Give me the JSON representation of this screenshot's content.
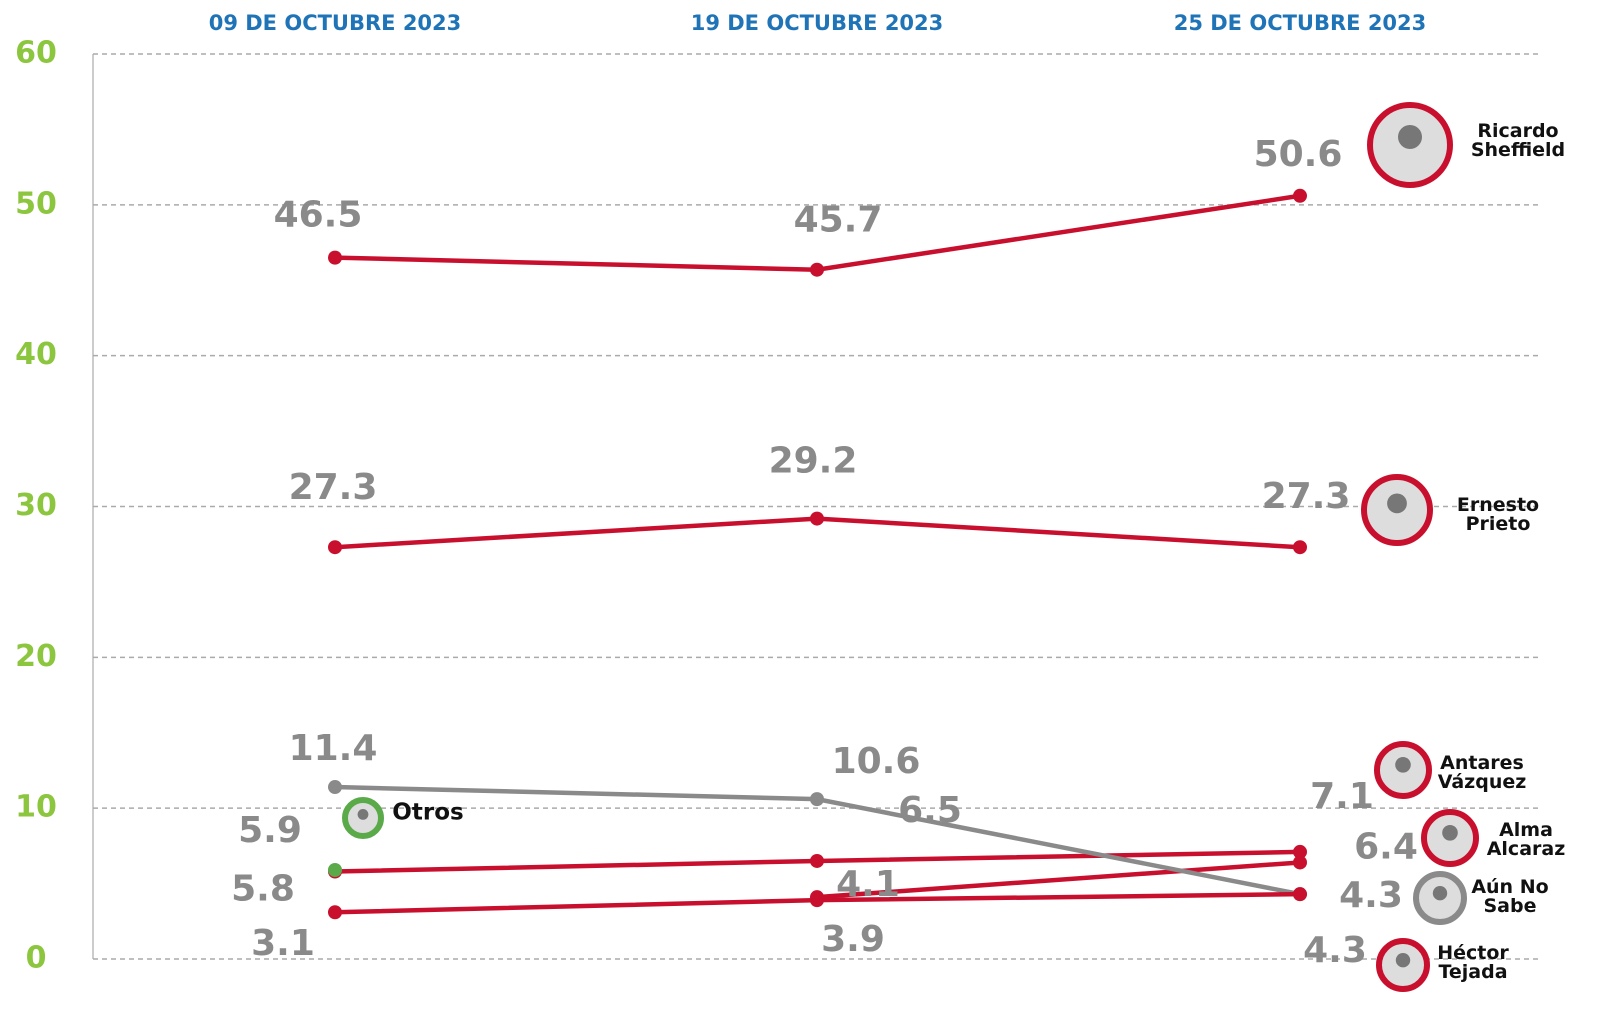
{
  "chart_data": {
    "type": "line",
    "categories": [
      "09 DE OCTUBRE 2023",
      "19 DE OCTUBRE 2023",
      "25 DE OCTUBRE 2023"
    ],
    "ylim": [
      0,
      60
    ],
    "yticks": [
      0,
      10,
      20,
      30,
      40,
      50,
      60
    ],
    "grid": true,
    "series": [
      {
        "name": "Ricardo Sheffield",
        "color": "#c8102e",
        "values": [
          46.5,
          45.7,
          50.6
        ]
      },
      {
        "name": "Ernesto Prieto",
        "color": "#c8102e",
        "values": [
          27.3,
          29.2,
          27.3
        ]
      },
      {
        "name": "Antares Vázquez",
        "color": "#c8102e",
        "values": [
          5.8,
          6.5,
          7.1
        ]
      },
      {
        "name": "Alma Alcaraz",
        "color": "#c8102e",
        "values": [
          null,
          4.1,
          6.4
        ]
      },
      {
        "name": "Aún No Sabe",
        "color": "#8a8a8a",
        "values": [
          11.4,
          10.6,
          4.3
        ]
      },
      {
        "name": "Héctor Tejada",
        "color": "#c8102e",
        "values": [
          3.1,
          3.9,
          4.3
        ]
      },
      {
        "name": "Otros",
        "color": "#5aaa4a",
        "values": [
          5.9,
          null,
          null
        ]
      }
    ]
  }
}
